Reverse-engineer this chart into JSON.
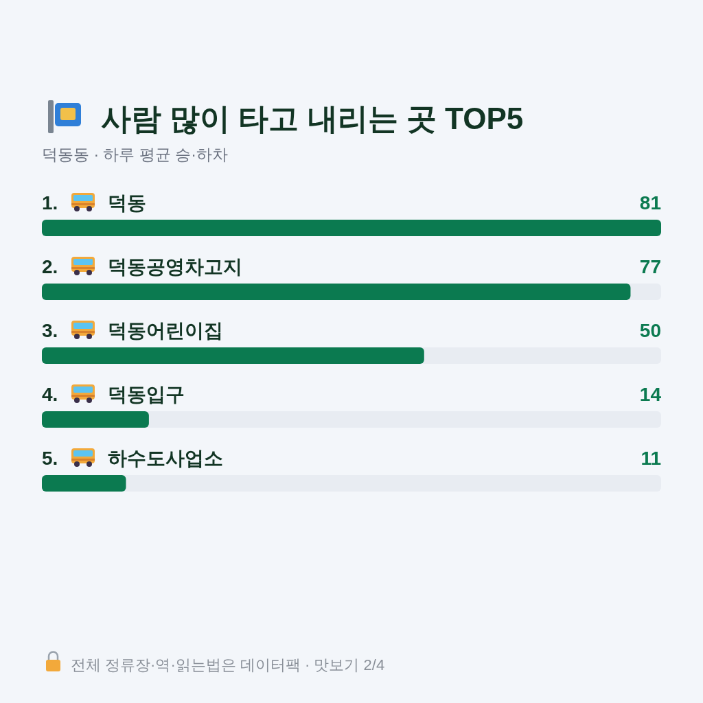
{
  "chart_data": {
    "type": "bar",
    "orientation": "horizontal",
    "title": "사람 많이 타고 내리는 곳 TOP5",
    "subtitle": "덕동동 · 하루 평균 승·하차",
    "categories": [
      "1. 덕동",
      "2. 덕동공영차고지",
      "3. 덕동어린이집",
      "4. 덕동입구",
      "5. 하수도사업소"
    ],
    "values": [
      81,
      77,
      50,
      14,
      11
    ],
    "color": "#0b7a50",
    "data_labels": true,
    "annotations": [
      "전체 정류장·역·읽는법은 데이터팩 · 맛보기 2/4"
    ]
  }
}
